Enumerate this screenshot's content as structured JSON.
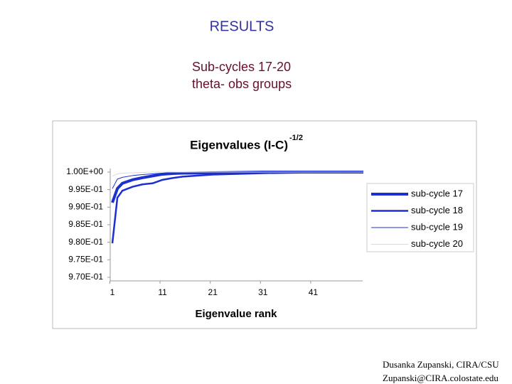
{
  "header": {
    "title": "RESULTS",
    "subtitle": [
      "Sub-cycles 17-20",
      "theta- obs groups"
    ]
  },
  "footer": [
    "Dusanka Zupanski, CIRA/CSU",
    "Zupanski@CIRA.colostate.edu"
  ],
  "chart_data": {
    "type": "line",
    "title": "Eigenvalues (I-C)",
    "title_superscript": "-1/2",
    "x_label": "Eigenvalue rank",
    "x": [
      1,
      2,
      3,
      5,
      7,
      9,
      11,
      13,
      15,
      21,
      31,
      41,
      51
    ],
    "series": [
      {
        "name": "sub-cycle 17",
        "color": "#1c2fd0",
        "line_width": 4,
        "values": [
          0.9913,
          0.9953,
          0.9968,
          0.9978,
          0.9984,
          0.9989,
          0.9994,
          0.9996,
          0.9997,
          0.9998,
          1.0,
          1.0,
          1.0
        ]
      },
      {
        "name": "sub-cycle 18",
        "color": "#1c2fd0",
        "line_width": 2.5,
        "values": [
          0.9797,
          0.9927,
          0.9947,
          0.9958,
          0.9965,
          0.9968,
          0.9978,
          0.9983,
          0.9987,
          0.9993,
          0.9997,
          0.9999,
          1.0
        ]
      },
      {
        "name": "sub-cycle 19",
        "color": "#1c2fd0",
        "line_width": 1,
        "values": [
          0.9953,
          0.998,
          0.9985,
          0.999,
          0.9993,
          0.9995,
          0.9997,
          0.9998,
          0.9999,
          1.0,
          1.0,
          1.0,
          1.0
        ]
      },
      {
        "name": "sub-cycle 20",
        "color": "#d9d9d9",
        "line_width": 1,
        "values": [
          0.9988,
          0.9995,
          0.9997,
          0.9998,
          0.9999,
          1.0,
          1.0,
          1.0,
          1.0,
          1.0,
          1.0,
          1.0,
          1.0
        ]
      }
    ],
    "xlim": [
      1,
      51
    ],
    "xticks": [
      1,
      11,
      21,
      31,
      41
    ],
    "ylim": [
      0.97,
      1.0
    ],
    "yticks": [
      {
        "value": 0.97,
        "label": "9.70E-01"
      },
      {
        "value": 0.975,
        "label": "9.75E-01"
      },
      {
        "value": 0.98,
        "label": "9.80E-01"
      },
      {
        "value": 0.985,
        "label": "9.85E-01"
      },
      {
        "value": 0.99,
        "label": "9.90E-01"
      },
      {
        "value": 0.995,
        "label": "9.95E-01"
      },
      {
        "value": 1.0,
        "label": "1.00E+00"
      }
    ],
    "grid": false,
    "legend": "right"
  }
}
